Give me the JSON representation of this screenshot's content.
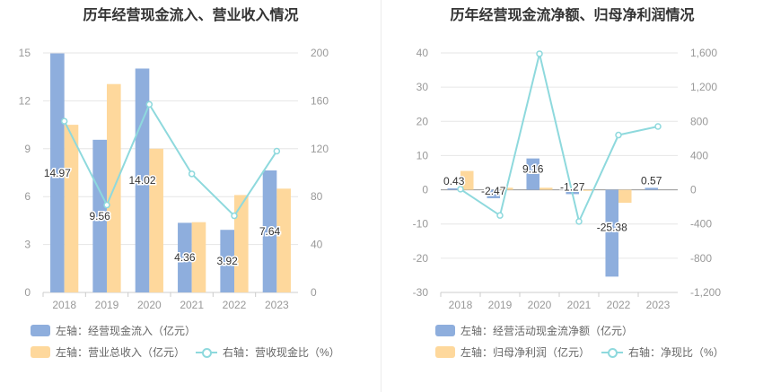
{
  "titles": {
    "left": "历年经营现金流入、营业收入情况",
    "right": "历年经营现金流净额、归母净利润情况"
  },
  "legends": {
    "left": {
      "bar1": "左轴：经营现金流入（亿元）",
      "bar2": "左轴：营业总收入（亿元）",
      "line": "右轴：营收现金比（%）"
    },
    "right": {
      "bar1": "左轴：经营活动现金流净额（亿元）",
      "bar2": "左轴：归母净利润（亿元）",
      "line": "右轴：净现比（%）"
    }
  },
  "colors": {
    "blue": "#8eaedd",
    "orange": "#fed89c",
    "teal": "#8ed9dd",
    "grid": "#e6e6e6",
    "axis_text": "#999999"
  },
  "chart_data": [
    {
      "type": "bar",
      "categories": [
        "2018",
        "2019",
        "2020",
        "2021",
        "2022",
        "2023"
      ],
      "series": [
        {
          "name": "左轴：经营现金流入（亿元）",
          "axis": "left",
          "values": [
            14.97,
            9.56,
            14.02,
            4.36,
            3.92,
            7.64
          ],
          "labels": [
            "14.97",
            "9.56",
            "14.02",
            "4.36",
            "3.92",
            "7.64"
          ]
        },
        {
          "name": "左轴：营业总收入（亿元）",
          "axis": "left",
          "values": [
            10.5,
            13.05,
            9.0,
            4.4,
            6.1,
            6.5
          ]
        },
        {
          "name": "右轴：营收现金比（%）",
          "axis": "right",
          "type": "line",
          "values": [
            143,
            73,
            157,
            99,
            64,
            118
          ]
        }
      ],
      "left_axis": {
        "ylim": [
          0,
          15
        ],
        "ticks": [
          "0",
          "3",
          "6",
          "9",
          "12",
          "15"
        ]
      },
      "right_axis": {
        "ylim": [
          0,
          200
        ],
        "ticks": [
          "0",
          "40",
          "80",
          "120",
          "160",
          "200"
        ]
      },
      "grid": true,
      "legend_position": "bottom"
    },
    {
      "type": "bar",
      "categories": [
        "2018",
        "2019",
        "2020",
        "2021",
        "2022",
        "2023"
      ],
      "series": [
        {
          "name": "左轴：经营活动现金流净额（亿元）",
          "axis": "left",
          "values": [
            0.43,
            -2.47,
            9.16,
            -1.27,
            -25.38,
            0.57
          ],
          "labels": [
            "0.43",
            "-2.47",
            "9.16",
            "-1.27",
            "-25.38",
            "0.57"
          ]
        },
        {
          "name": "左轴：归母净利润（亿元）",
          "axis": "left",
          "values": [
            5.5,
            0.6,
            0.6,
            -0.3,
            -3.8,
            null
          ]
        },
        {
          "name": "右轴：净现比（%）",
          "axis": "right",
          "type": "line",
          "values": [
            7,
            -300,
            1590,
            -370,
            640,
            740
          ]
        }
      ],
      "left_axis": {
        "ylim": [
          -30,
          40
        ],
        "ticks": [
          "-30",
          "-20",
          "-10",
          "0",
          "10",
          "20",
          "30",
          "40"
        ]
      },
      "right_axis": {
        "ylim": [
          -1200,
          1600
        ],
        "ticks": [
          "-1,200",
          "-800",
          "-400",
          "0",
          "400",
          "800",
          "1,200",
          "1,600"
        ]
      },
      "grid": true,
      "legend_position": "bottom"
    }
  ]
}
